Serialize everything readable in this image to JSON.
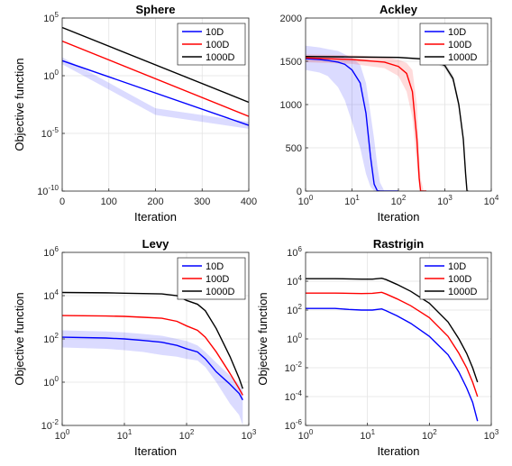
{
  "chart_data": [
    {
      "type": "line",
      "title": "Sphere",
      "xlabel": "Iteration",
      "ylabel": "Objective function",
      "xscale": "linear",
      "yscale": "log",
      "xlim": [
        0,
        400
      ],
      "ylim": [
        1e-10,
        100000.0
      ],
      "xticks": [
        0,
        100,
        200,
        300,
        400
      ],
      "xtick_labels": [
        "0",
        "100",
        "200",
        "300",
        "400"
      ],
      "yticks": [
        1e-10,
        1e-05,
        1,
        100000.0
      ],
      "ytick_labels": [
        {
          "base": "10",
          "exp": "-10"
        },
        {
          "base": "10",
          "exp": "-5"
        },
        {
          "base": "10",
          "exp": "0"
        },
        {
          "base": "10",
          "exp": "5"
        }
      ],
      "grid": true,
      "legend_position": "top-right",
      "series": [
        {
          "name": "10D",
          "color": "#0000ff",
          "x": [
            0,
            400
          ],
          "y": [
            20,
            5e-05
          ],
          "band": {
            "x": [
              0,
              200,
              400
            ],
            "lo": [
              10,
              0.0004,
              2.5e-05
            ],
            "hi": [
              40,
              0.0015,
              0.0001
            ]
          }
        },
        {
          "name": "100D",
          "color": "#ff0000",
          "x": [
            0,
            400
          ],
          "y": [
            1000,
            0.0003
          ]
        },
        {
          "name": "1000D",
          "color": "#000000",
          "x": [
            0,
            400
          ],
          "y": [
            15000,
            0.005
          ]
        }
      ]
    },
    {
      "type": "line",
      "title": "Ackley",
      "xlabel": "Iteration",
      "ylabel": "",
      "xscale": "log",
      "yscale": "linear",
      "xlim": [
        1,
        10000
      ],
      "ylim": [
        0,
        2000
      ],
      "xticks": [
        1,
        10,
        100,
        1000,
        10000
      ],
      "xtick_labels": [
        {
          "base": "10",
          "exp": "0"
        },
        {
          "base": "10",
          "exp": "1"
        },
        {
          "base": "10",
          "exp": "2"
        },
        {
          "base": "10",
          "exp": "3"
        },
        {
          "base": "10",
          "exp": "4"
        }
      ],
      "yticks": [
        0,
        500,
        1000,
        1500,
        2000
      ],
      "ytick_labels": [
        "0",
        "500",
        "1000",
        "1500",
        "2000"
      ],
      "grid": true,
      "legend_position": "top-right",
      "series": [
        {
          "name": "10D",
          "color": "#0000ff",
          "x": [
            1,
            2,
            3,
            5,
            7,
            10,
            15,
            20,
            25,
            30,
            35,
            40,
            100
          ],
          "y": [
            1530,
            1520,
            1510,
            1490,
            1465,
            1400,
            1250,
            900,
            400,
            80,
            5,
            0,
            0
          ],
          "band": {
            "x": [
              1,
              2,
              3,
              5,
              7,
              10,
              15,
              20,
              25,
              30,
              35,
              40,
              50
            ],
            "lo": [
              1400,
              1370,
              1330,
              1200,
              1050,
              800,
              500,
              200,
              50,
              0,
              0,
              0,
              0
            ],
            "hi": [
              1680,
              1660,
              1640,
              1620,
              1580,
              1540,
              1460,
              1250,
              900,
              600,
              300,
              100,
              0
            ]
          }
        },
        {
          "name": "100D",
          "color": "#ff0000",
          "x": [
            1,
            10,
            50,
            100,
            150,
            200,
            250,
            280,
            300,
            350,
            400
          ],
          "y": [
            1540,
            1520,
            1490,
            1440,
            1360,
            1150,
            600,
            150,
            0,
            0,
            0
          ],
          "band": {
            "x": [
              1,
              10,
              50,
              100,
              150,
              200,
              250,
              280,
              300,
              350,
              400
            ],
            "lo": [
              1490,
              1470,
              1420,
              1330,
              1150,
              850,
              300,
              50,
              0,
              0,
              0
            ],
            "hi": [
              1580,
              1570,
              1550,
              1520,
              1480,
              1400,
              1000,
              400,
              150,
              0,
              0
            ]
          }
        },
        {
          "name": "1000D",
          "color": "#000000",
          "x": [
            1,
            10,
            100,
            500,
            1000,
            1500,
            2000,
            2500,
            2800,
            3000,
            3200
          ],
          "y": [
            1555,
            1550,
            1545,
            1520,
            1450,
            1300,
            1000,
            600,
            200,
            0,
            0
          ],
          "band": {
            "x": [
              1,
              10,
              100,
              500,
              1000,
              1500,
              2000,
              2500,
              2800,
              3000
            ],
            "lo": [
              1545,
              1540,
              1535,
              1505,
              1420,
              1260,
              950,
              550,
              150,
              0
            ],
            "hi": [
              1565,
              1560,
              1555,
              1535,
              1480,
              1340,
              1050,
              650,
              250,
              0
            ]
          }
        }
      ]
    },
    {
      "type": "line",
      "title": "Levy",
      "xlabel": "Iteration",
      "ylabel": "Objective function",
      "xscale": "log",
      "yscale": "log",
      "xlim": [
        1,
        1000
      ],
      "ylim": [
        0.01,
        1000000
      ],
      "xticks": [
        1,
        10,
        100,
        1000
      ],
      "xtick_labels": [
        {
          "base": "10",
          "exp": "0"
        },
        {
          "base": "10",
          "exp": "1"
        },
        {
          "base": "10",
          "exp": "2"
        },
        {
          "base": "10",
          "exp": "3"
        }
      ],
      "yticks": [
        0.01,
        1,
        100,
        10000,
        1000000
      ],
      "ytick_labels": [
        {
          "base": "10",
          "exp": "-2"
        },
        {
          "base": "10",
          "exp": "0"
        },
        {
          "base": "10",
          "exp": "2"
        },
        {
          "base": "10",
          "exp": "4"
        },
        {
          "base": "10",
          "exp": "6"
        }
      ],
      "grid": true,
      "legend_position": "top-right",
      "series": [
        {
          "name": "10D",
          "color": "#0000ff",
          "x": [
            1,
            5,
            10,
            20,
            40,
            70,
            100,
            150,
            200,
            300,
            500,
            700,
            800
          ],
          "y": [
            120,
            110,
            100,
            85,
            70,
            50,
            35,
            25,
            12,
            3,
            0.8,
            0.3,
            0.15
          ],
          "band": {
            "x": [
              1,
              5,
              10,
              20,
              40,
              70,
              100,
              150,
              200,
              300,
              500,
              700,
              800
            ],
            "lo": [
              40,
              35,
              30,
              25,
              18,
              15,
              12,
              10,
              5,
              1,
              0.1,
              0.03,
              0.01
            ],
            "hi": [
              250,
              220,
              200,
              170,
              140,
              100,
              80,
              50,
              25,
              8,
              2,
              0.8,
              0.4
            ]
          }
        },
        {
          "name": "100D",
          "color": "#ff0000",
          "x": [
            1,
            5,
            10,
            20,
            40,
            70,
            100,
            150,
            200,
            300,
            500,
            700,
            800
          ],
          "y": [
            1200,
            1150,
            1100,
            1000,
            900,
            650,
            400,
            250,
            120,
            25,
            2.5,
            0.5,
            0.25
          ]
        },
        {
          "name": "1000D",
          "color": "#000000",
          "x": [
            1,
            5,
            10,
            20,
            40,
            70,
            100,
            150,
            200,
            300,
            500,
            700,
            800
          ],
          "y": [
            14000,
            13500,
            13000,
            12500,
            12000,
            10000,
            6000,
            4000,
            2000,
            300,
            15,
            1.5,
            0.5
          ]
        }
      ]
    },
    {
      "type": "line",
      "title": "Rastrigin",
      "xlabel": "Iteration",
      "ylabel": "Objective function",
      "xscale": "log",
      "yscale": "log",
      "xlim": [
        1,
        1000
      ],
      "ylim": [
        1e-06,
        1000000
      ],
      "xticks": [
        1,
        10,
        100,
        1000
      ],
      "xtick_labels": [
        {
          "base": "10",
          "exp": "0"
        },
        {
          "base": "10",
          "exp": "1"
        },
        {
          "base": "10",
          "exp": "2"
        },
        {
          "base": "10",
          "exp": "3"
        }
      ],
      "yticks": [
        1e-06,
        0.0001,
        0.01,
        1,
        100,
        10000,
        1000000
      ],
      "ytick_labels": [
        {
          "base": "10",
          "exp": "-6"
        },
        {
          "base": "10",
          "exp": "-4"
        },
        {
          "base": "10",
          "exp": "-2"
        },
        {
          "base": "10",
          "exp": "0"
        },
        {
          "base": "10",
          "exp": "2"
        },
        {
          "base": "10",
          "exp": "4"
        },
        {
          "base": "10",
          "exp": "6"
        }
      ],
      "grid": true,
      "legend_position": "top-right",
      "series": [
        {
          "name": "10D",
          "color": "#0000ff",
          "x": [
            1,
            3,
            5,
            8,
            12,
            17,
            20,
            30,
            50,
            100,
            200,
            300,
            400,
            500,
            600
          ],
          "y": [
            130,
            130,
            110,
            100,
            100,
            120,
            90,
            40,
            12,
            1.5,
            0.08,
            0.005,
            0.0004,
            4e-05,
            2e-06
          ]
        },
        {
          "name": "100D",
          "color": "#ff0000",
          "x": [
            1,
            3,
            5,
            8,
            12,
            17,
            20,
            30,
            50,
            100,
            200,
            300,
            400,
            500,
            600
          ],
          "y": [
            1500,
            1500,
            1450,
            1400,
            1450,
            1700,
            1300,
            600,
            200,
            30,
            1.5,
            0.1,
            0.01,
            0.001,
            0.0001
          ]
        },
        {
          "name": "1000D",
          "color": "#000000",
          "x": [
            1,
            3,
            5,
            8,
            12,
            17,
            20,
            30,
            50,
            100,
            200,
            300,
            400,
            500,
            600
          ],
          "y": [
            15000,
            15000,
            14500,
            14000,
            14000,
            16000,
            13000,
            6000,
            2000,
            300,
            15,
            1,
            0.1,
            0.01,
            0.001
          ]
        }
      ]
    }
  ]
}
